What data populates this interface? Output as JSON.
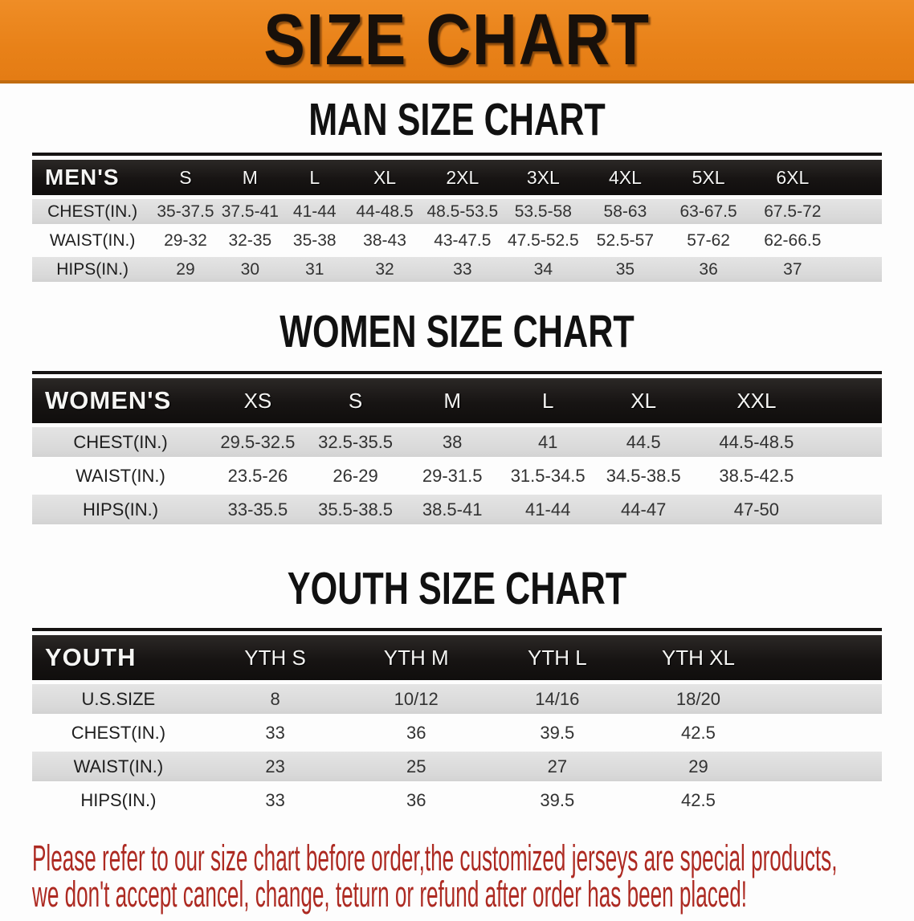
{
  "banner": {
    "title": "SIZE CHART",
    "bg_color": "#e88118",
    "text_color": "#18100a"
  },
  "sections": [
    {
      "id": "men",
      "heading": "MAN SIZE CHART",
      "header_label": "MEN'S",
      "columns": [
        "S",
        "M",
        "L",
        "XL",
        "2XL",
        "3XL",
        "4XL",
        "5XL",
        "6XL"
      ],
      "rows": [
        {
          "label": "CHEST(IN.)",
          "values": [
            "35-37.5",
            "37.5-41",
            "41-44",
            "44-48.5",
            "48.5-53.5",
            "53.5-58",
            "58-63",
            "63-67.5",
            "67.5-72"
          ]
        },
        {
          "label": "WAIST(IN.)",
          "values": [
            "29-32",
            "32-35",
            "35-38",
            "38-43",
            "43-47.5",
            "47.5-52.5",
            "52.5-57",
            "57-62",
            "62-66.5"
          ]
        },
        {
          "label": "HIPS(IN.)",
          "values": [
            "29",
            "30",
            "31",
            "32",
            "33",
            "34",
            "35",
            "36",
            "37"
          ]
        }
      ]
    },
    {
      "id": "women",
      "heading": "WOMEN SIZE CHART",
      "header_label": "WOMEN'S",
      "columns": [
        "XS",
        "S",
        "M",
        "L",
        "XL",
        "XXL"
      ],
      "rows": [
        {
          "label": "CHEST(IN.)",
          "values": [
            "29.5-32.5",
            "32.5-35.5",
            "38",
            "41",
            "44.5",
            "44.5-48.5"
          ]
        },
        {
          "label": "WAIST(IN.)",
          "values": [
            "23.5-26",
            "26-29",
            "29-31.5",
            "31.5-34.5",
            "34.5-38.5",
            "38.5-42.5"
          ]
        },
        {
          "label": "HIPS(IN.)",
          "values": [
            "33-35.5",
            "35.5-38.5",
            "38.5-41",
            "41-44",
            "44-47",
            "47-50"
          ]
        }
      ]
    },
    {
      "id": "youth",
      "heading": "YOUTH SIZE CHART",
      "header_label": "YOUTH",
      "columns": [
        "YTH S",
        "YTH M",
        "YTH L",
        "YTH XL"
      ],
      "rows": [
        {
          "label": "U.S.SIZE",
          "values": [
            "8",
            "10/12",
            "14/16",
            "18/20"
          ]
        },
        {
          "label": "CHEST(IN.)",
          "values": [
            "33",
            "36",
            "39.5",
            "42.5"
          ]
        },
        {
          "label": "WAIST(IN.)",
          "values": [
            "23",
            "25",
            "27",
            "29"
          ]
        },
        {
          "label": "HIPS(IN.)",
          "values": [
            "33",
            "36",
            "39.5",
            "42.5"
          ]
        }
      ]
    }
  ],
  "notice": {
    "line1": "Please refer to our size chart before order,the customized jerseys are special products,",
    "line2": "we don't accept cancel, change, teturn or refund after order has been placed!",
    "color": "#ad2a22"
  }
}
